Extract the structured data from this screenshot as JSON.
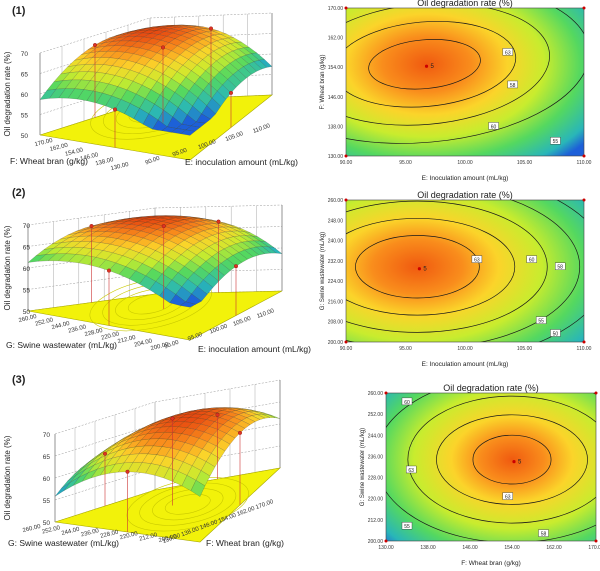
{
  "figure": {
    "panel_labels": [
      "(1)",
      "(2)",
      "(3)"
    ],
    "surfaces": [
      {
        "zlabel": "Oil degradation rate (%)",
        "zticks": [
          "70",
          "65",
          "60",
          "55",
          "50"
        ],
        "xlabel": "E: inoculation amount (mL/kg)",
        "xticks": [
          "90.00",
          "95.00",
          "100.00",
          "105.00",
          "110.00"
        ],
        "ylabel": "F: Wheat bran (g/kg)",
        "yticks": [
          "170.00",
          "162.00",
          "154.00",
          "146.00",
          "138.00",
          "130.00"
        ]
      },
      {
        "zlabel": "Oil degradation rate (%)",
        "zticks": [
          "70",
          "65",
          "60",
          "55",
          "50"
        ],
        "xlabel": "E: inoculation amount (mL/kg)",
        "xticks": [
          "90.00",
          "95.00",
          "100.00",
          "105.00",
          "110.00"
        ],
        "ylabel": "G: Swine wastewater (mL/kg)",
        "yticks": [
          "260.00",
          "252.00",
          "244.00",
          "236.00",
          "228.00",
          "220.00",
          "212.00",
          "204.00",
          "200.00"
        ]
      },
      {
        "zlabel": "Oil degradation rate (%)",
        "zticks": [
          "70",
          "65",
          "60",
          "55",
          "50"
        ],
        "xlabel": "F: Wheat bran (g/kg)",
        "xticks": [
          "130.00",
          "138.00",
          "146.00",
          "154.00",
          "162.00",
          "170.00"
        ],
        "ylabel": "G: Swine wastewater (mL/kg)",
        "yticks": [
          "260.00",
          "252.00",
          "244.00",
          "236.00",
          "228.00",
          "220.00",
          "212.00",
          "200.00"
        ]
      }
    ],
    "contours": [
      {
        "title": "Oil degradation rate (%)",
        "xlabel": "E: Inoculation amount (mL/kg)",
        "ylabel": "F: Wheat bran (g/kg)",
        "xticks": [
          "90.00",
          "95.00",
          "100.00",
          "105.00",
          "110.00"
        ],
        "yticks": [
          "170.00",
          "162.00",
          "154.00",
          "146.00",
          "138.00",
          "130.00"
        ],
        "labels": [
          "63",
          "60",
          "58",
          "55"
        ],
        "center_label": "5"
      },
      {
        "title": "Oil degradation rate (%)",
        "xlabel": "E: Inoculation amount (mL/kg)",
        "ylabel": "G: Swine wastewater (mL/kg)",
        "xticks": [
          "90.00",
          "95.00",
          "100.00",
          "105.00",
          "110.00"
        ],
        "yticks": [
          "260.00",
          "248.00",
          "240.00",
          "232.00",
          "224.00",
          "216.00",
          "208.00",
          "200.00"
        ],
        "labels": [
          "63",
          "60",
          "58",
          "55",
          "50"
        ],
        "center_label": "5"
      },
      {
        "title": "Oil degradation rate (%)",
        "xlabel": "F: Wheat bran (g/kg)",
        "ylabel": "G: Swine wastewater (mL/kg)",
        "xticks": [
          "130.00",
          "138.00",
          "146.00",
          "154.00",
          "162.00",
          "170.00"
        ],
        "yticks": [
          "260.00",
          "252.00",
          "244.00",
          "236.00",
          "228.00",
          "220.00",
          "212.00",
          "200.00"
        ],
        "labels": [
          "60",
          "63",
          "63",
          "55",
          "58"
        ],
        "center_label": "5"
      }
    ]
  },
  "chart_data": [
    {
      "type": "surface",
      "title": "",
      "xlabel": "E: inoculation amount (mL/kg)",
      "ylabel": "F: Wheat bran (g/kg)",
      "zlabel": "Oil degradation rate (%)",
      "xlim": [
        90,
        110
      ],
      "ylim": [
        130,
        170
      ],
      "zlim": [
        50,
        70
      ],
      "peak": {
        "x": 95,
        "y": 160,
        "z": 64
      }
    },
    {
      "type": "contour",
      "title": "Oil degradation rate (%)",
      "xlabel": "E: Inoculation amount (mL/kg)",
      "ylabel": "F: Wheat bran (g/kg)",
      "xlim": [
        90,
        110
      ],
      "ylim": [
        130,
        170
      ],
      "levels": [
        55,
        58,
        60,
        63
      ],
      "center": {
        "x": 96,
        "y": 158
      }
    },
    {
      "type": "surface",
      "title": "",
      "xlabel": "E: inoculation amount (mL/kg)",
      "ylabel": "G: Swine wastewater (mL/kg)",
      "zlabel": "Oil degradation rate (%)",
      "xlim": [
        90,
        110
      ],
      "ylim": [
        200,
        260
      ],
      "zlim": [
        50,
        70
      ],
      "peak": {
        "x": 96,
        "y": 230,
        "z": 63
      }
    },
    {
      "type": "contour",
      "title": "Oil degradation rate (%)",
      "xlabel": "E: Inoculation amount (mL/kg)",
      "ylabel": "G: Swine wastewater (mL/kg)",
      "xlim": [
        90,
        110
      ],
      "ylim": [
        200,
        260
      ],
      "levels": [
        50,
        55,
        58,
        60,
        63
      ],
      "center": {
        "x": 98,
        "y": 231
      }
    },
    {
      "type": "surface",
      "title": "",
      "xlabel": "F: Wheat bran (g/kg)",
      "ylabel": "G: Swine wastewater (mL/kg)",
      "zlabel": "Oil degradation rate (%)",
      "xlim": [
        130,
        170
      ],
      "ylim": [
        200,
        260
      ],
      "zlim": [
        50,
        70
      ],
      "peak": {
        "x": 156,
        "y": 232,
        "z": 66
      }
    },
    {
      "type": "contour",
      "title": "Oil degradation rate (%)",
      "xlabel": "F: Wheat bran (g/kg)",
      "ylabel": "G: Swine wastewater (mL/kg)",
      "xlim": [
        130,
        170
      ],
      "ylim": [
        200,
        260
      ],
      "levels": [
        55,
        58,
        60,
        63
      ],
      "center": {
        "x": 157,
        "y": 232
      }
    }
  ]
}
